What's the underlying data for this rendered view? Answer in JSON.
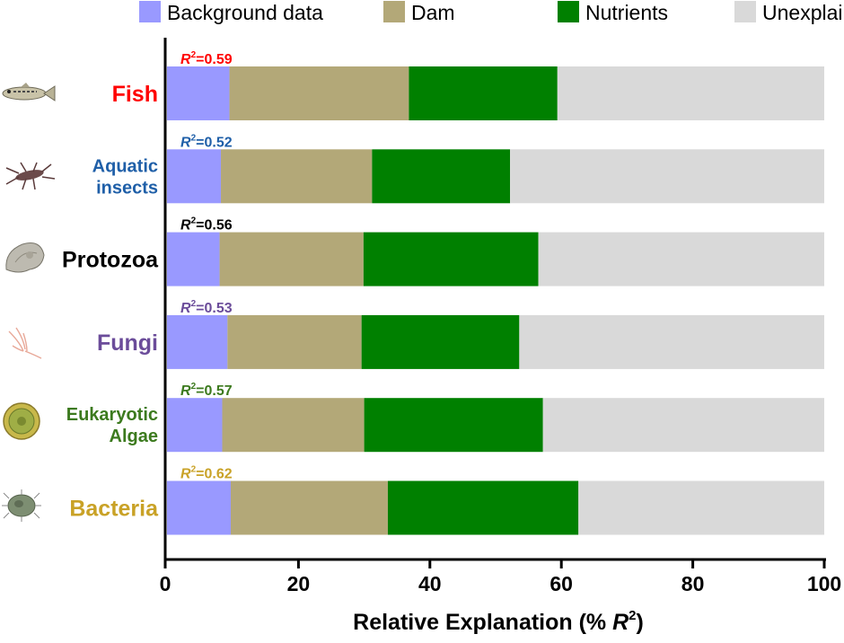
{
  "chart_data": {
    "type": "bar",
    "orientation": "horizontal",
    "stacked": true,
    "xlabel": "Relative Explanation (% R²)",
    "xlabel_prefix": "Relative Explanation (% ",
    "xlabel_r": "R",
    "xlabel_sup": "2",
    "xlabel_suffix": ")",
    "xlim": [
      0,
      100
    ],
    "xticks": [
      0,
      20,
      40,
      60,
      80,
      100
    ],
    "legend_position": "top",
    "series": [
      {
        "name": "Background data",
        "color": "#9999ff",
        "values": [
          9.5,
          8.2,
          8.0,
          9.2,
          8.4,
          9.7
        ]
      },
      {
        "name": "Dam",
        "color": "#b3a878",
        "values": [
          27.3,
          23.0,
          21.9,
          20.4,
          21.6,
          23.9
        ]
      },
      {
        "name": "Nutrients",
        "color": "#008000",
        "values": [
          22.6,
          21.0,
          26.6,
          24.0,
          27.2,
          29.0
        ]
      },
      {
        "name": "Unexplained",
        "color": "#d9d9d9",
        "values": [
          40.6,
          47.8,
          43.5,
          46.4,
          42.8,
          37.4
        ]
      }
    ],
    "categories": [
      {
        "label_lines": [
          "Fish"
        ],
        "color": "#ff0000",
        "r2_label": "R",
        "r2_sup": "2",
        "r2_value": "=0.59",
        "icon": "fish-icon"
      },
      {
        "label_lines": [
          "Aquatic",
          "insects"
        ],
        "color": "#1f5fa8",
        "r2_label": "R",
        "r2_sup": "2",
        "r2_value": "=0.52",
        "icon": "aquatic-insect-icon"
      },
      {
        "label_lines": [
          "Protozoa"
        ],
        "color": "#000000",
        "r2_label": "R",
        "r2_sup": "2",
        "r2_value": "=0.56",
        "icon": "protozoa-icon"
      },
      {
        "label_lines": [
          "Fungi"
        ],
        "color": "#6b4c9a",
        "r2_label": "R",
        "r2_sup": "2",
        "r2_value": "=0.53",
        "icon": "fungi-icon"
      },
      {
        "label_lines": [
          "Eukaryotic",
          "Algae"
        ],
        "color": "#3c7a1e",
        "r2_label": "R",
        "r2_sup": "2",
        "r2_value": "=0.57",
        "icon": "algae-icon"
      },
      {
        "label_lines": [
          "Bacteria"
        ],
        "color": "#c9a227",
        "r2_label": "R",
        "r2_sup": "2",
        "r2_value": "=0.62",
        "icon": "bacteria-icon"
      }
    ]
  }
}
